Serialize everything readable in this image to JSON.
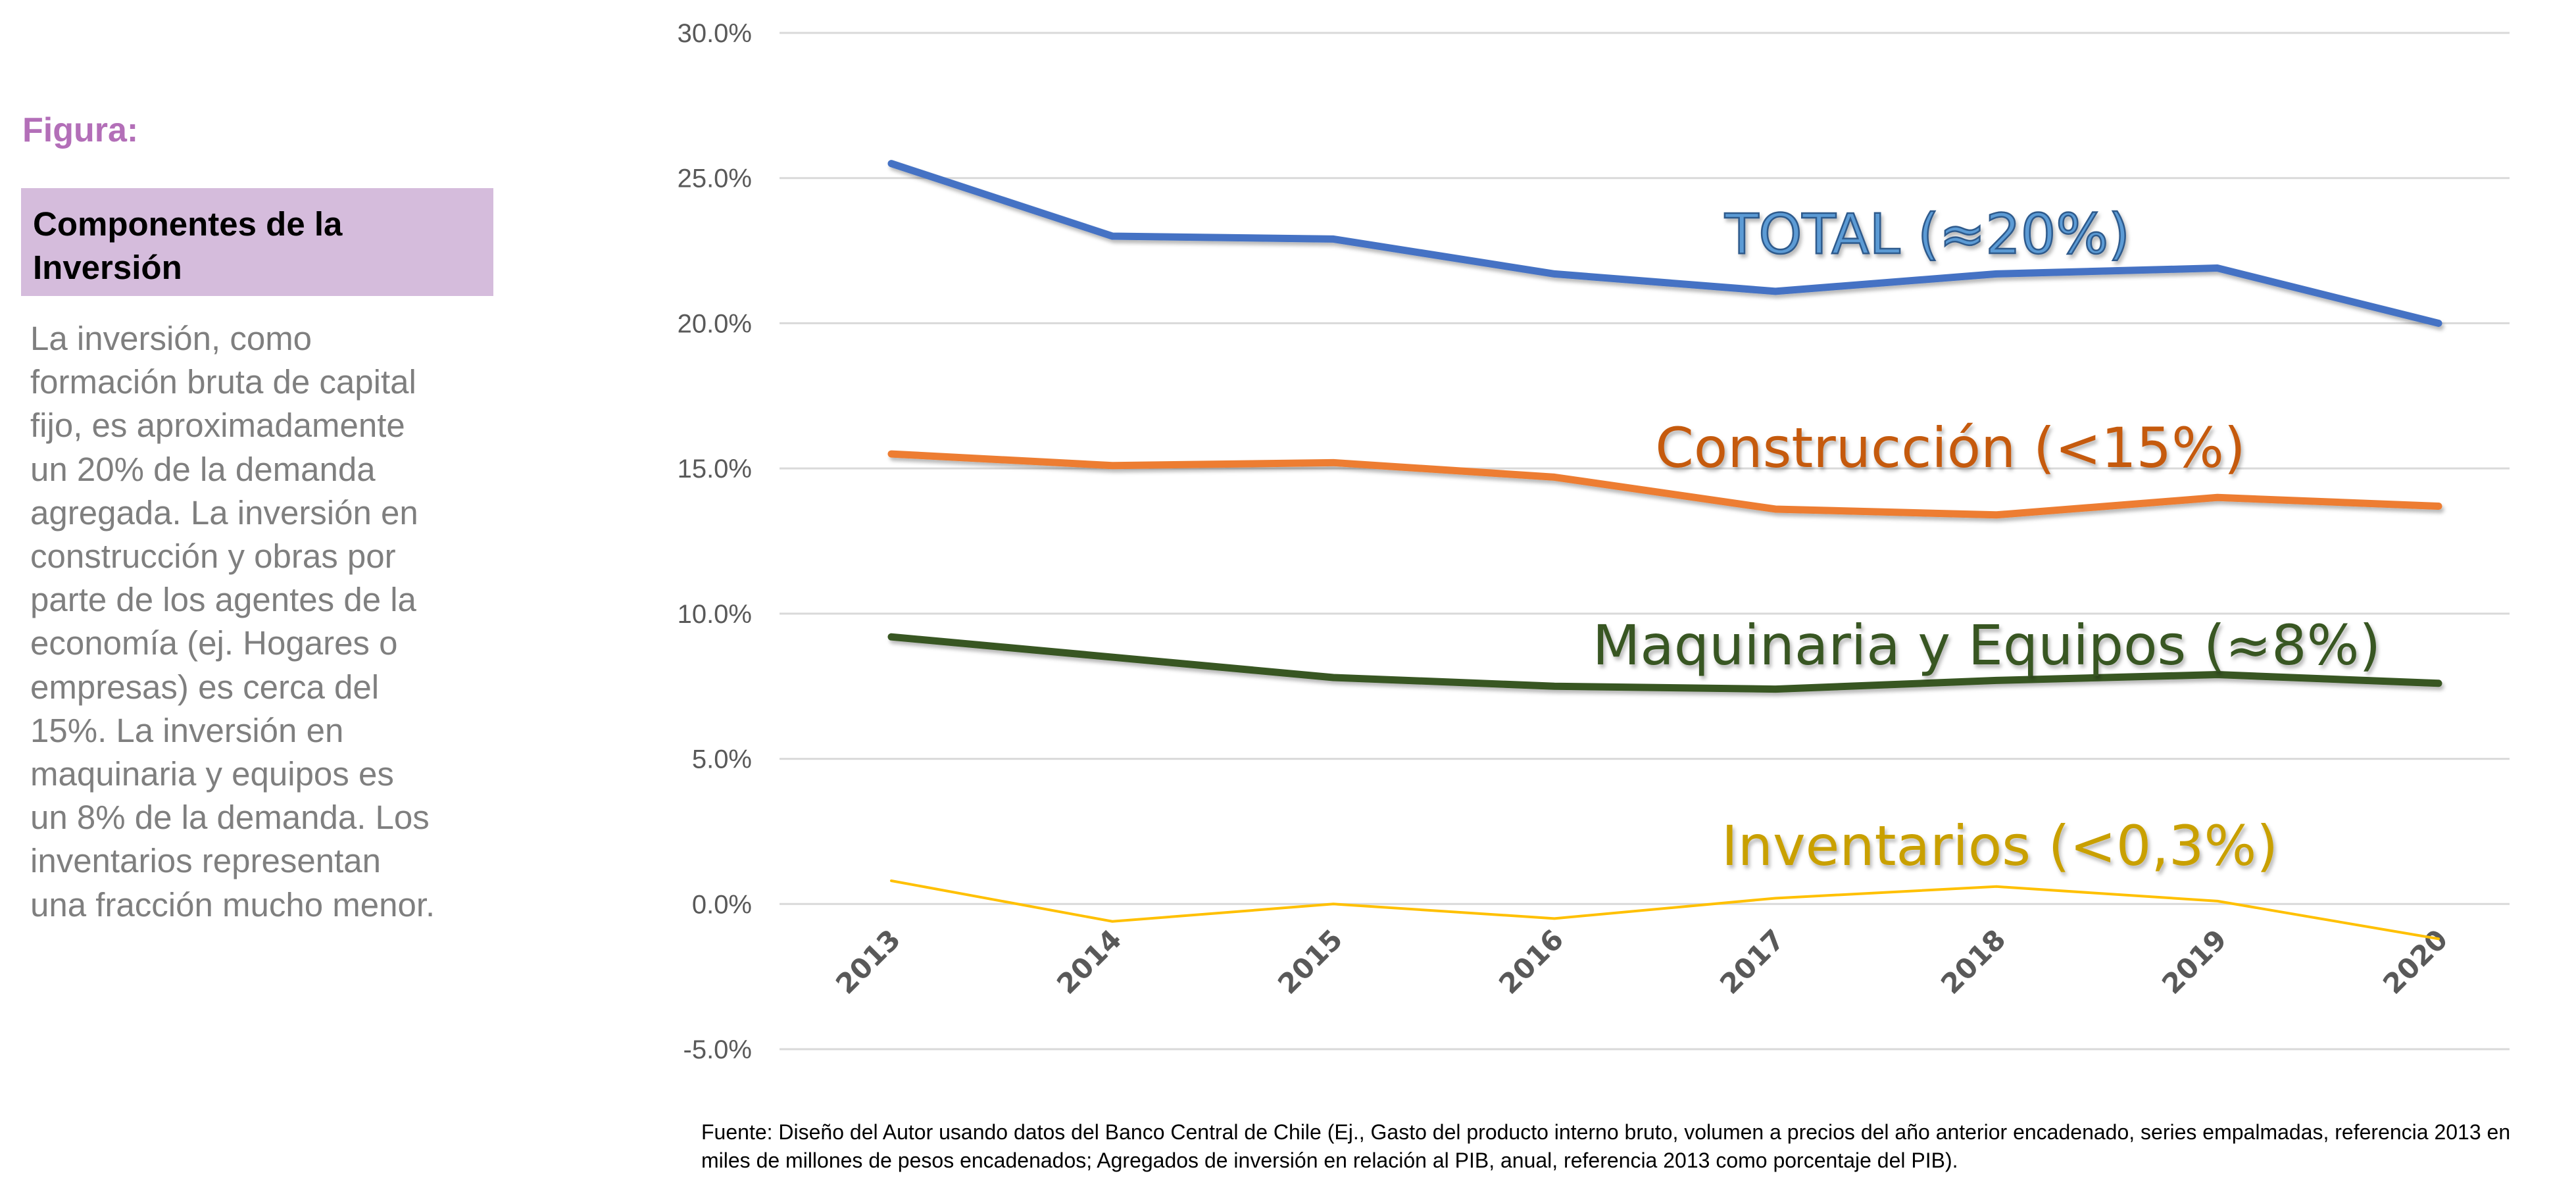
{
  "sidebar": {
    "figura_label": "Figura:",
    "heading_lines": [
      "Componentes de la",
      "Inversión"
    ],
    "description_lines": [
      "La inversión, como",
      "formación bruta de capital",
      "fijo, es aproximadamente",
      "un 20% de la demanda",
      "agregada. La inversión en",
      "construcción y obras por",
      "parte de los agentes de la",
      "economía (ej. Hogares o",
      "empresas) es cerca del",
      "15%. La inversión en",
      "maquinaria y equipos es",
      "un 8% de la demanda. Los",
      "inventarios representan",
      "una fracción mucho menor."
    ]
  },
  "chart_data": {
    "type": "line",
    "title": "",
    "xlabel": "",
    "ylabel": "",
    "x": [
      "2013",
      "2014",
      "2015",
      "2016",
      "2017",
      "2018",
      "2019",
      "2020"
    ],
    "ylim": [
      -5.0,
      30.0
    ],
    "ytick_values": [
      -5,
      0,
      5,
      10,
      15,
      20,
      25,
      30
    ],
    "ytick_labels": [
      "-5.0%",
      "0.0%",
      "5.0%",
      "10.0%",
      "15.0%",
      "20.0%",
      "25.0%",
      "30.0%"
    ],
    "grid": "horizontal",
    "legend": "none",
    "series": [
      {
        "label": "TOTAL (≈20%)",
        "color": "#4472c4",
        "values": [
          25.5,
          23.0,
          22.9,
          21.7,
          21.1,
          21.7,
          21.9,
          20.0
        ]
      },
      {
        "label": "Construcción (<15%)",
        "color": "#ed7d31",
        "values": [
          15.5,
          15.1,
          15.2,
          14.7,
          13.6,
          13.4,
          14.0,
          13.7
        ]
      },
      {
        "label": "Maquinaria y Equipos (≈8%)",
        "color": "#375623",
        "values": [
          9.2,
          8.5,
          7.8,
          7.5,
          7.4,
          7.7,
          7.9,
          7.6
        ]
      },
      {
        "label": "Inventarios (<0,3%)",
        "color": "#ffc000",
        "values": [
          0.8,
          -0.6,
          0.0,
          -0.5,
          0.2,
          0.6,
          0.1,
          -1.2
        ]
      }
    ]
  },
  "source_text": "Fuente: Diseño del Autor usando datos del Banco Central de Chile (Ej., Gasto del producto interno bruto, volumen a precios del año anterior encadenado, series empalmadas, referencia 2013 en miles de millones de pesos encadenados; Agregados de inversión en relación al PIB, anual, referencia 2013 como porcentaje del PIB)."
}
